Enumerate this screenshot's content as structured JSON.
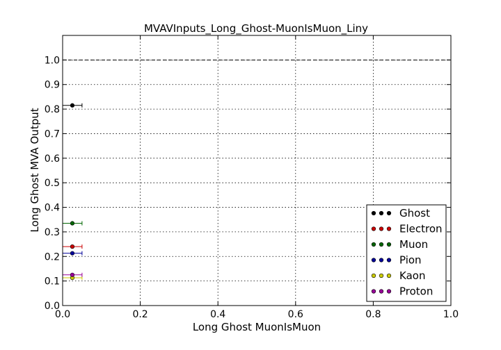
{
  "chart_data": {
    "type": "scatter",
    "title": "MVAVInputs_Long_Ghost-MuonIsMuon_Liny",
    "xlabel": "Long Ghost MuonIsMuon",
    "ylabel": "Long Ghost MVA Output",
    "xlim": [
      0.0,
      1.0
    ],
    "ylim": [
      0.0,
      1.1
    ],
    "xticks": [
      "0.0",
      "0.2",
      "0.4",
      "0.6",
      "0.8",
      "1.0"
    ],
    "yticks": [
      "0.0",
      "0.1",
      "0.2",
      "0.3",
      "0.4",
      "0.5",
      "0.6",
      "0.7",
      "0.8",
      "0.9",
      "1.0"
    ],
    "grid": true,
    "reference_line_y": 1.0,
    "legend_position": "lower-right",
    "series": [
      {
        "name": "Ghost",
        "color": "#000000",
        "x": [
          0.025
        ],
        "y": [
          0.815
        ],
        "xerr": [
          0.025
        ]
      },
      {
        "name": "Electron",
        "color": "#cc0000",
        "x": [
          0.025
        ],
        "y": [
          0.24
        ],
        "xerr": [
          0.025
        ]
      },
      {
        "name": "Muon",
        "color": "#006600",
        "x": [
          0.025
        ],
        "y": [
          0.335
        ],
        "xerr": [
          0.025
        ]
      },
      {
        "name": "Pion",
        "color": "#000099",
        "x": [
          0.025
        ],
        "y": [
          0.213
        ],
        "xerr": [
          0.025
        ]
      },
      {
        "name": "Kaon",
        "color": "#cccc00",
        "x": [
          0.025
        ],
        "y": [
          0.113
        ],
        "xerr": [
          0.025
        ]
      },
      {
        "name": "Proton",
        "color": "#990099",
        "x": [
          0.025
        ],
        "y": [
          0.125
        ],
        "xerr": [
          0.025
        ]
      }
    ]
  }
}
